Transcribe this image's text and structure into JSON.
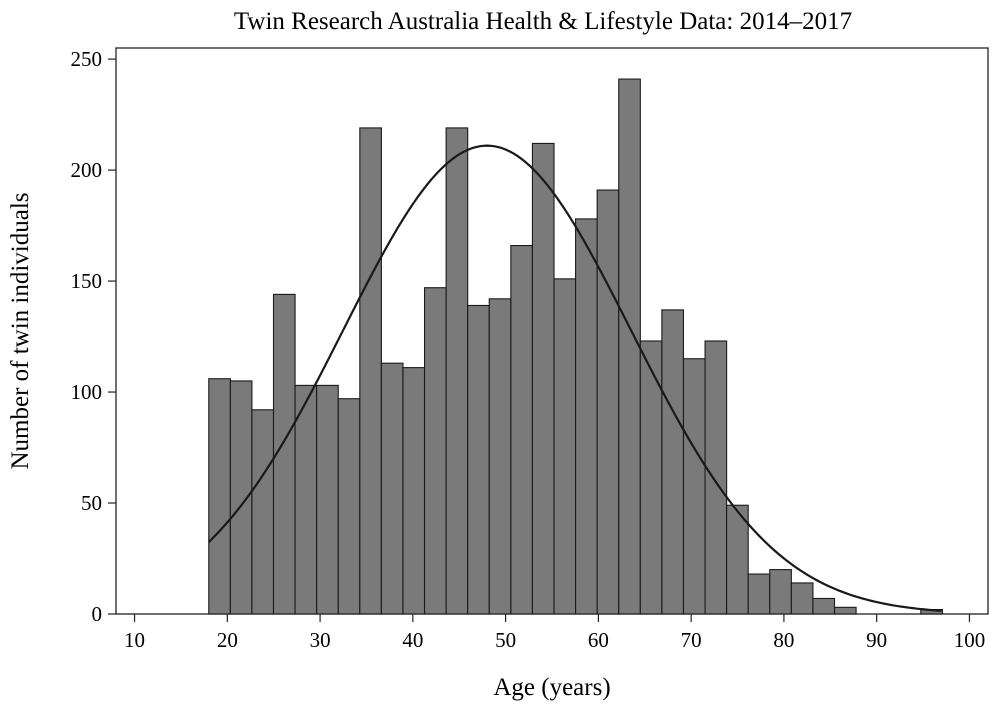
{
  "chart_data": {
    "type": "bar",
    "title": "Twin Research Australia Health & Lifestyle Data: 2014–2017",
    "xlabel": "Age (years)",
    "ylabel": "Number of twin individuals",
    "xlim": [
      8,
      102
    ],
    "ylim": [
      0,
      255
    ],
    "xticks": [
      10,
      20,
      30,
      40,
      50,
      60,
      70,
      80,
      90,
      100
    ],
    "yticks": [
      0,
      50,
      100,
      150,
      200,
      250
    ],
    "bin_width": 2.326,
    "bins": [
      {
        "x0": 18.0,
        "value": 106
      },
      {
        "x0": 20.326,
        "value": 105
      },
      {
        "x0": 22.652,
        "value": 92
      },
      {
        "x0": 24.978,
        "value": 144
      },
      {
        "x0": 27.304,
        "value": 103
      },
      {
        "x0": 29.63,
        "value": 103
      },
      {
        "x0": 31.956,
        "value": 97
      },
      {
        "x0": 34.282,
        "value": 219
      },
      {
        "x0": 36.608,
        "value": 113
      },
      {
        "x0": 38.934,
        "value": 111
      },
      {
        "x0": 41.26,
        "value": 147
      },
      {
        "x0": 43.586,
        "value": 219
      },
      {
        "x0": 45.912,
        "value": 139
      },
      {
        "x0": 48.238,
        "value": 142
      },
      {
        "x0": 50.564,
        "value": 166
      },
      {
        "x0": 52.89,
        "value": 212
      },
      {
        "x0": 55.216,
        "value": 151
      },
      {
        "x0": 57.542,
        "value": 178
      },
      {
        "x0": 59.868,
        "value": 191
      },
      {
        "x0": 62.194,
        "value": 241
      },
      {
        "x0": 64.52,
        "value": 123
      },
      {
        "x0": 66.846,
        "value": 137
      },
      {
        "x0": 69.172,
        "value": 115
      },
      {
        "x0": 71.498,
        "value": 123
      },
      {
        "x0": 73.824,
        "value": 49
      },
      {
        "x0": 76.15,
        "value": 18
      },
      {
        "x0": 78.476,
        "value": 20
      },
      {
        "x0": 80.802,
        "value": 14
      },
      {
        "x0": 83.128,
        "value": 7
      },
      {
        "x0": 85.454,
        "value": 3
      },
      {
        "x0": 94.758,
        "value": 2
      }
    ],
    "normal_curve": {
      "mean": 48,
      "peak": 211,
      "sd": 15.5,
      "x_range": [
        18,
        97
      ]
    },
    "colors": {
      "bar_fill": "#7a7a7a",
      "bar_stroke": "#1a1a1a",
      "curve": "#1a1a1a",
      "axis": "#222222"
    },
    "grid": false,
    "legend": "none"
  }
}
